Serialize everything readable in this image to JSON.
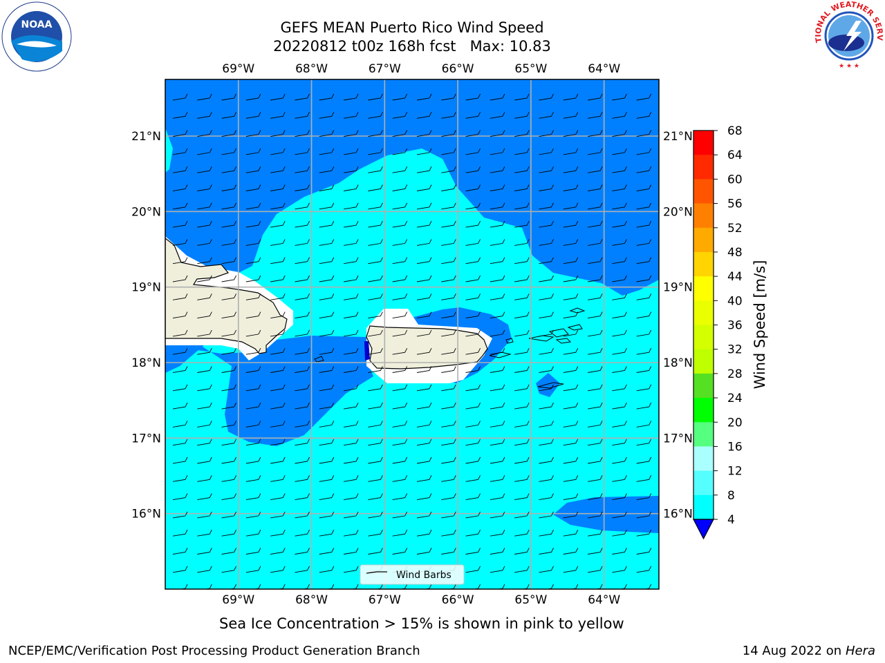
{
  "header": {
    "title_line1": "GEFS MEAN Puerto Rico Wind Speed",
    "title_line2": "20220812 t00z 168h fcst   Max: 10.83"
  },
  "logos": {
    "left": "noaa-logo",
    "left_text": "NOAA",
    "right": "nws-logo",
    "right_text": "NATIONAL WEATHER SERVICE"
  },
  "map": {
    "lon_labels": [
      "69°W",
      "68°W",
      "67°W",
      "66°W",
      "65°W",
      "64°W"
    ],
    "lat_labels": [
      "21°N",
      "20°N",
      "19°N",
      "18°N",
      "17°N",
      "16°N"
    ],
    "lon_range": [
      -70.0,
      -63.25
    ],
    "lat_range": [
      15.0,
      21.75
    ],
    "legend_label": "Wind Barbs",
    "colors": {
      "ocean_4_8": "#0080ff",
      "ocean_8_12": "#00ffff",
      "land": "#efefdc",
      "grid": "#b0b0b0"
    }
  },
  "colorbar": {
    "label": "Wind Speed [m/s]",
    "ticks": [
      "68",
      "64",
      "60",
      "56",
      "52",
      "48",
      "44",
      "40",
      "36",
      "32",
      "28",
      "24",
      "20",
      "16",
      "12",
      "8",
      "4"
    ],
    "colors": [
      "#ff0000",
      "#ff2a00",
      "#ff5500",
      "#ff8000",
      "#ffaa00",
      "#ffd400",
      "#ffff00",
      "#eaff00",
      "#d4ff00",
      "#bfff00",
      "#55e023",
      "#00ff00",
      "#55ff80",
      "#aaffff",
      "#55ffff",
      "#00ffff",
      "#0080ff"
    ],
    "under_color": "#0000ff"
  },
  "footer": {
    "note": "Sea Ice Concentration > 15% is shown in pink to yellow",
    "credit": "NCEP/EMC/Verification Post Processing Product Generation Branch",
    "date": "14 Aug 2022 on",
    "machine": "Hera"
  }
}
